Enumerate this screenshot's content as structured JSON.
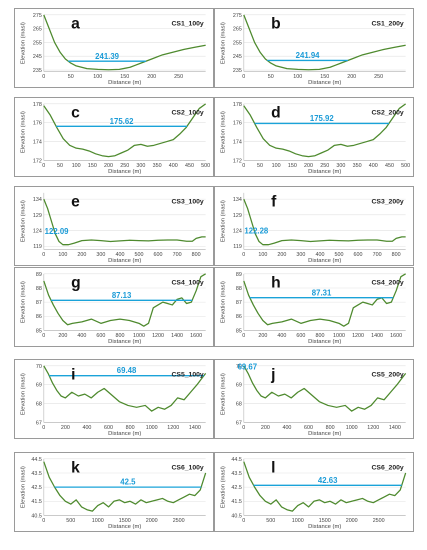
{
  "colors": {
    "terrain": "#4e8a2e",
    "water": "#1aa3d9",
    "grid": "#e2e2e2",
    "frame": "#9a9a9a"
  },
  "chart_data": [
    {
      "type": "line",
      "panel": "a",
      "section": "CS1_100y",
      "water_level": 241.39,
      "xlabel": "Distance (m)",
      "ylabel": "Elevation (masl)",
      "xlim": [
        0,
        300
      ],
      "ylim": [
        234,
        275
      ],
      "xticks": [
        "0",
        "50",
        "100",
        "150",
        "200",
        "250"
      ],
      "yticks": [
        "235",
        "245",
        "255",
        "265",
        "275"
      ],
      "ytick_values": [
        235,
        245,
        255,
        265,
        275
      ],
      "series": [
        {
          "x": [
            0,
            10,
            20,
            30,
            40,
            50,
            60,
            70,
            80,
            100,
            120,
            140,
            160,
            170,
            180,
            200,
            220,
            240,
            260,
            280,
            300
          ],
          "y": [
            275,
            265,
            255,
            248,
            243,
            240,
            238,
            237,
            236,
            235.5,
            235.2,
            235.5,
            237,
            238.5,
            240,
            243,
            246,
            248,
            250,
            251.5,
            253
          ]
        }
      ]
    },
    {
      "type": "line",
      "panel": "b",
      "section": "CS1_200y",
      "water_level": 241.94,
      "xlabel": "Distance (m)",
      "ylabel": "Elevation (masl)",
      "xlim": [
        0,
        300
      ],
      "ylim": [
        234,
        275
      ],
      "xticks": [
        "0",
        "50",
        "100",
        "150",
        "200",
        "250"
      ],
      "yticks": [
        "235",
        "245",
        "255",
        "265",
        "275"
      ],
      "ytick_values": [
        235,
        245,
        255,
        265,
        275
      ],
      "series": [
        {
          "x": [
            0,
            10,
            20,
            30,
            40,
            50,
            60,
            70,
            80,
            100,
            120,
            140,
            160,
            170,
            180,
            200,
            220,
            240,
            260,
            280,
            300
          ],
          "y": [
            275,
            265,
            255,
            248,
            243,
            240,
            238,
            237,
            236,
            235.5,
            235.2,
            235.5,
            237,
            238.5,
            240,
            243,
            246,
            248,
            250,
            251.5,
            253
          ]
        }
      ]
    },
    {
      "type": "line",
      "panel": "c",
      "section": "CS2_100y",
      "water_level": 175.62,
      "xlabel": "Distance (m)",
      "ylabel": "Elevation (masl)",
      "xlim": [
        0,
        500
      ],
      "ylim": [
        172,
        178
      ],
      "xticks": [
        "0",
        "50",
        "100",
        "150",
        "200",
        "250",
        "300",
        "350",
        "400",
        "450",
        "500"
      ],
      "yticks": [
        "172",
        "174",
        "176",
        "178"
      ],
      "ytick_values": [
        172,
        174,
        176,
        178
      ],
      "series": [
        {
          "x": [
            0,
            20,
            40,
            60,
            80,
            100,
            120,
            140,
            160,
            180,
            200,
            220,
            240,
            260,
            280,
            300,
            320,
            340,
            360,
            380,
            400,
            420,
            440,
            460,
            480,
            500
          ],
          "y": [
            177.8,
            176.8,
            175.5,
            174.3,
            173.6,
            173.3,
            173.2,
            173,
            172.7,
            172.5,
            172.4,
            172.5,
            172.8,
            173.1,
            173.6,
            173.7,
            173.5,
            173.6,
            173.8,
            174,
            174.2,
            174.8,
            175.5,
            176.5,
            177.5,
            178
          ]
        }
      ]
    },
    {
      "type": "line",
      "panel": "d",
      "section": "CS2_200y",
      "water_level": 175.92,
      "xlabel": "Distance (m)",
      "ylabel": "Elevation (masl)",
      "xlim": [
        0,
        500
      ],
      "ylim": [
        172,
        178
      ],
      "xticks": [
        "0",
        "50",
        "100",
        "150",
        "200",
        "250",
        "300",
        "350",
        "400",
        "450",
        "500"
      ],
      "yticks": [
        "172",
        "174",
        "176",
        "178"
      ],
      "ytick_values": [
        172,
        174,
        176,
        178
      ],
      "series": [
        {
          "x": [
            0,
            20,
            40,
            60,
            80,
            100,
            120,
            140,
            160,
            180,
            200,
            220,
            240,
            260,
            280,
            300,
            320,
            340,
            360,
            380,
            400,
            420,
            440,
            460,
            480,
            500
          ],
          "y": [
            177.8,
            176.8,
            175.5,
            174.3,
            173.6,
            173.3,
            173.2,
            173,
            172.7,
            172.5,
            172.4,
            172.5,
            172.8,
            173.1,
            173.6,
            173.7,
            173.5,
            173.6,
            173.8,
            174,
            174.2,
            174.8,
            175.5,
            176.5,
            177.5,
            178
          ]
        }
      ]
    },
    {
      "type": "line",
      "panel": "e",
      "section": "CS3_100y",
      "water_level": 122.09,
      "xlabel": "Distance (m)",
      "ylabel": "Elevation (masl)",
      "xlim": [
        0,
        850
      ],
      "ylim": [
        118,
        136
      ],
      "xticks": [
        "0",
        "100",
        "200",
        "300",
        "400",
        "500",
        "600",
        "700",
        "800"
      ],
      "yticks": [
        "119",
        "124",
        "129",
        "134"
      ],
      "ytick_values": [
        119,
        124,
        129,
        134
      ],
      "series": [
        {
          "x": [
            0,
            20,
            40,
            60,
            80,
            100,
            130,
            160,
            200,
            250,
            300,
            350,
            400,
            450,
            500,
            550,
            600,
            650,
            700,
            750,
            780,
            800,
            830,
            850
          ],
          "y": [
            134,
            131,
            127,
            123,
            120.5,
            119.5,
            119.5,
            120,
            120.8,
            121,
            120.8,
            120.5,
            120.7,
            120.9,
            120.8,
            120.7,
            120.9,
            121,
            121,
            120.6,
            120.6,
            121.5,
            122,
            122
          ]
        }
      ]
    },
    {
      "type": "line",
      "panel": "f",
      "section": "CS3_200y",
      "water_level": 122.28,
      "xlabel": "Distance (m)",
      "ylabel": "Elevation (masl)",
      "xlim": [
        0,
        850
      ],
      "ylim": [
        118,
        136
      ],
      "xticks": [
        "0",
        "100",
        "200",
        "300",
        "400",
        "500",
        "600",
        "700",
        "800"
      ],
      "yticks": [
        "119",
        "124",
        "129",
        "134"
      ],
      "ytick_values": [
        119,
        124,
        129,
        134
      ],
      "series": [
        {
          "x": [
            0,
            20,
            40,
            60,
            80,
            100,
            130,
            160,
            200,
            250,
            300,
            350,
            400,
            450,
            500,
            550,
            600,
            650,
            700,
            750,
            780,
            800,
            830,
            850
          ],
          "y": [
            134,
            131,
            127,
            123,
            120.5,
            119.5,
            119.5,
            120,
            120.8,
            121,
            120.8,
            120.5,
            120.7,
            120.9,
            120.8,
            120.7,
            120.9,
            121,
            121,
            120.6,
            120.6,
            121.5,
            122,
            122
          ]
        }
      ]
    },
    {
      "type": "line",
      "panel": "g",
      "section": "CS4_100y",
      "water_level": 87.13,
      "xlabel": "Distance (m)",
      "ylabel": "Elevation (masl)",
      "xlim": [
        0,
        1700
      ],
      "ylim": [
        85,
        89
      ],
      "xticks": [
        "0",
        "200",
        "400",
        "600",
        "800",
        "1000",
        "1200",
        "1400",
        "1600"
      ],
      "yticks": [
        "85",
        "86",
        "87",
        "88",
        "89"
      ],
      "ytick_values": [
        85,
        86,
        87,
        88,
        89
      ],
      "series": [
        {
          "x": [
            0,
            50,
            100,
            150,
            200,
            250,
            300,
            400,
            500,
            600,
            700,
            800,
            900,
            1000,
            1050,
            1100,
            1150,
            1200,
            1250,
            1300,
            1350,
            1400,
            1450,
            1500,
            1550,
            1600,
            1650,
            1700
          ],
          "y": [
            88.5,
            87.5,
            86.8,
            86.2,
            85.7,
            85.4,
            85.5,
            85.6,
            85.8,
            85.5,
            85.7,
            85.8,
            85.7,
            85.5,
            85.3,
            85.5,
            86.6,
            86.8,
            87,
            86.9,
            86.8,
            87.2,
            87.3,
            86.9,
            87,
            87.8,
            88.8,
            89
          ]
        }
      ]
    },
    {
      "type": "line",
      "panel": "h",
      "section": "CS4_200y",
      "water_level": 87.31,
      "xlabel": "Distance (m)",
      "ylabel": "Elevation (masl)",
      "xlim": [
        0,
        1700
      ],
      "ylim": [
        85,
        89
      ],
      "xticks": [
        "0",
        "200",
        "400",
        "600",
        "800",
        "1000",
        "1200",
        "1400",
        "1600"
      ],
      "yticks": [
        "85",
        "86",
        "87",
        "88",
        "89"
      ],
      "ytick_values": [
        85,
        86,
        87,
        88,
        89
      ],
      "series": [
        {
          "x": [
            0,
            50,
            100,
            150,
            200,
            250,
            300,
            400,
            500,
            600,
            700,
            800,
            900,
            1000,
            1050,
            1100,
            1150,
            1200,
            1250,
            1300,
            1350,
            1400,
            1450,
            1500,
            1550,
            1600,
            1650,
            1700
          ],
          "y": [
            88.5,
            87.5,
            86.8,
            86.2,
            85.7,
            85.4,
            85.5,
            85.6,
            85.8,
            85.5,
            85.7,
            85.8,
            85.7,
            85.5,
            85.3,
            85.5,
            86.6,
            86.8,
            87,
            86.9,
            86.8,
            87.2,
            87.3,
            86.9,
            87,
            87.8,
            88.8,
            89
          ]
        }
      ]
    },
    {
      "type": "line",
      "panel": "i",
      "section": "CS5_100y",
      "water_level": 69.48,
      "xlabel": "Distance (m)",
      "ylabel": "Elevation (masl)",
      "xlim": [
        0,
        1500
      ],
      "ylim": [
        67,
        70
      ],
      "xticks": [
        "0",
        "200",
        "400",
        "600",
        "800",
        "1000",
        "1200",
        "1400"
      ],
      "yticks": [
        "67",
        "68",
        "69",
        "70"
      ],
      "ytick_values": [
        67,
        68,
        69,
        70
      ],
      "series": [
        {
          "x": [
            0,
            40,
            80,
            120,
            160,
            200,
            260,
            320,
            380,
            440,
            500,
            560,
            620,
            700,
            780,
            860,
            940,
            1000,
            1060,
            1120,
            1180,
            1240,
            1300,
            1360,
            1420,
            1460,
            1500
          ],
          "y": [
            70,
            69.6,
            69.1,
            68.7,
            68.4,
            68.3,
            68.6,
            68.4,
            68.5,
            68.3,
            68.6,
            68.8,
            68.5,
            68.1,
            67.9,
            67.8,
            67.9,
            67.6,
            67.8,
            67.7,
            67.9,
            68.3,
            68.2,
            68.6,
            69,
            69.3,
            69.6
          ]
        }
      ]
    },
    {
      "type": "line",
      "panel": "j",
      "section": "CS5_200y",
      "water_level": 69.67,
      "xlabel": "Distance (m)",
      "ylabel": "Elevation (masl)",
      "xlim": [
        0,
        1500
      ],
      "ylim": [
        67,
        70
      ],
      "xticks": [
        "0",
        "200",
        "400",
        "600",
        "800",
        "1000",
        "1200",
        "1400"
      ],
      "yticks": [
        "67",
        "68",
        "69",
        "70"
      ],
      "ytick_values": [
        67,
        68,
        69,
        70
      ],
      "series": [
        {
          "x": [
            0,
            40,
            80,
            120,
            160,
            200,
            260,
            320,
            380,
            440,
            500,
            560,
            620,
            700,
            780,
            860,
            940,
            1000,
            1060,
            1120,
            1180,
            1240,
            1300,
            1360,
            1420,
            1460,
            1500
          ],
          "y": [
            70,
            69.6,
            69.1,
            68.7,
            68.4,
            68.3,
            68.6,
            68.4,
            68.5,
            68.3,
            68.6,
            68.8,
            68.5,
            68.1,
            67.9,
            67.8,
            67.9,
            67.6,
            67.8,
            67.7,
            67.9,
            68.3,
            68.2,
            68.6,
            69,
            69.3,
            69.6
          ]
        }
      ]
    },
    {
      "type": "line",
      "panel": "k",
      "section": "CS6_100y",
      "water_level": 42.5,
      "xlabel": "Distance (m)",
      "ylabel": "Elevation (masl)",
      "xlim": [
        0,
        3000
      ],
      "ylim": [
        40.5,
        44.5
      ],
      "xticks": [
        "0",
        "500",
        "1000",
        "1500",
        "2000",
        "2500"
      ],
      "yticks": [
        "40.5",
        "41.5",
        "42.5",
        "43.5",
        "44.5"
      ],
      "ytick_values": [
        40.5,
        41.5,
        42.5,
        43.5,
        44.5
      ],
      "series": [
        {
          "x": [
            0,
            100,
            200,
            300,
            400,
            500,
            600,
            700,
            800,
            900,
            1000,
            1100,
            1200,
            1300,
            1400,
            1500,
            1600,
            1700,
            1800,
            1900,
            2000,
            2100,
            2200,
            2300,
            2400,
            2500,
            2600,
            2700,
            2800,
            2900,
            3000
          ],
          "y": [
            44.3,
            43.2,
            42.5,
            41.9,
            41.5,
            41.3,
            41.6,
            41.1,
            40.9,
            40.8,
            41.2,
            41.4,
            41.1,
            41.5,
            41.6,
            41.4,
            41.5,
            41.3,
            41.6,
            41.4,
            41.5,
            41.6,
            41.7,
            41.5,
            41.4,
            41.6,
            41.8,
            42,
            41.9,
            42.3,
            43.5
          ]
        }
      ]
    },
    {
      "type": "line",
      "panel": "l",
      "section": "CS6_200y",
      "water_level": 42.63,
      "xlabel": "Distance (m)",
      "ylabel": "Elevation (masl)",
      "xlim": [
        0,
        3000
      ],
      "ylim": [
        40.5,
        44.5
      ],
      "xticks": [
        "0",
        "500",
        "1000",
        "1500",
        "2000",
        "2500"
      ],
      "yticks": [
        "40.5",
        "41.5",
        "42.5",
        "43.5",
        "44.5"
      ],
      "ytick_values": [
        40.5,
        41.5,
        42.5,
        43.5,
        44.5
      ],
      "series": [
        {
          "x": [
            0,
            100,
            200,
            300,
            400,
            500,
            600,
            700,
            800,
            900,
            1000,
            1100,
            1200,
            1300,
            1400,
            1500,
            1600,
            1700,
            1800,
            1900,
            2000,
            2100,
            2200,
            2300,
            2400,
            2500,
            2600,
            2700,
            2800,
            2900,
            3000
          ],
          "y": [
            44.3,
            43.2,
            42.5,
            41.9,
            41.5,
            41.3,
            41.6,
            41.1,
            40.9,
            40.8,
            41.2,
            41.4,
            41.1,
            41.5,
            41.6,
            41.4,
            41.5,
            41.3,
            41.6,
            41.4,
            41.5,
            41.6,
            41.7,
            41.5,
            41.4,
            41.6,
            41.8,
            42,
            41.9,
            42.3,
            43.5
          ]
        }
      ]
    }
  ]
}
